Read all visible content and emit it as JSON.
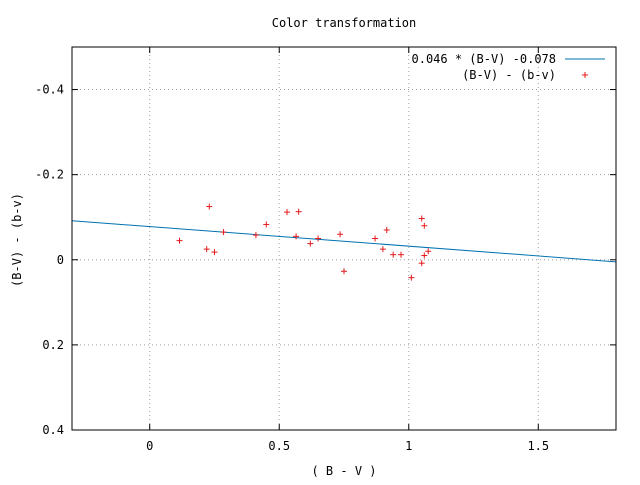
{
  "chart_data": {
    "type": "scatter",
    "title": "Color transformation",
    "xlabel": "( B - V )",
    "ylabel": "(B-V) - (b-v)",
    "xlim": [
      -0.3,
      1.8
    ],
    "ylim": [
      0.4,
      -0.5
    ],
    "y_axis_inverted": true,
    "grid": true,
    "legend_position": "top-right",
    "x_ticks": [
      {
        "value": 0,
        "label": "0"
      },
      {
        "value": 0.5,
        "label": "0.5"
      },
      {
        "value": 1,
        "label": "1"
      },
      {
        "value": 1.5,
        "label": "1.5"
      }
    ],
    "y_ticks": [
      {
        "value": -0.4,
        "label": "-0.4"
      },
      {
        "value": -0.2,
        "label": "-0.2"
      },
      {
        "value": 0,
        "label": "0"
      },
      {
        "value": 0.2,
        "label": "0.2"
      },
      {
        "value": 0.4,
        "label": "0.4"
      }
    ],
    "series": [
      {
        "name": "0.046 * (B-V) -0.078",
        "kind": "line",
        "color": "#0072b2",
        "slope": 0.046,
        "intercept": -0.078
      },
      {
        "name": "(B-V) - (b-v)",
        "kind": "points",
        "color": "#e41a1c",
        "marker": "+",
        "points": [
          {
            "x": 0.115,
            "y": -0.045
          },
          {
            "x": 0.22,
            "y": -0.025
          },
          {
            "x": 0.23,
            "y": -0.125
          },
          {
            "x": 0.25,
            "y": -0.018
          },
          {
            "x": 0.285,
            "y": -0.065
          },
          {
            "x": 0.41,
            "y": -0.058
          },
          {
            "x": 0.45,
            "y": -0.083
          },
          {
            "x": 0.53,
            "y": -0.112
          },
          {
            "x": 0.565,
            "y": -0.055
          },
          {
            "x": 0.575,
            "y": -0.113
          },
          {
            "x": 0.62,
            "y": -0.038
          },
          {
            "x": 0.65,
            "y": -0.05
          },
          {
            "x": 0.735,
            "y": -0.06
          },
          {
            "x": 0.75,
            "y": 0.027
          },
          {
            "x": 0.87,
            "y": -0.05
          },
          {
            "x": 0.9,
            "y": -0.025
          },
          {
            "x": 0.915,
            "y": -0.07
          },
          {
            "x": 0.94,
            "y": -0.012
          },
          {
            "x": 0.97,
            "y": -0.012
          },
          {
            "x": 1.01,
            "y": 0.042
          },
          {
            "x": 1.05,
            "y": 0.008
          },
          {
            "x": 1.05,
            "y": -0.097
          },
          {
            "x": 1.06,
            "y": -0.08
          },
          {
            "x": 1.06,
            "y": -0.01
          },
          {
            "x": 1.075,
            "y": -0.02
          }
        ]
      }
    ]
  }
}
